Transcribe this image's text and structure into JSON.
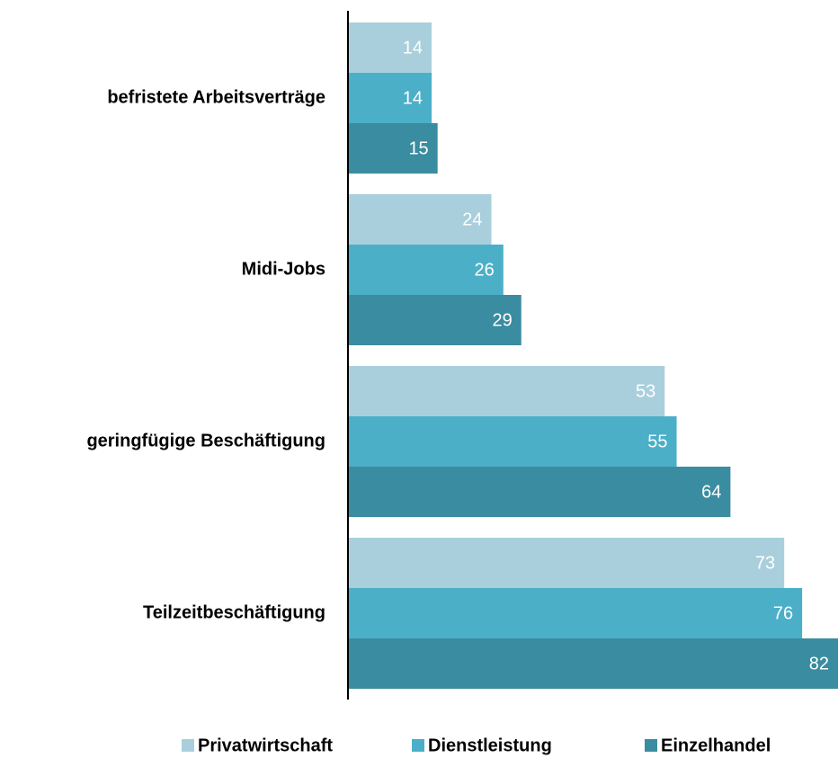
{
  "chart_data": {
    "type": "bar",
    "orientation": "horizontal",
    "categories": [
      "befristete Arbeitsverträge",
      "Midi-Jobs",
      "geringfügige Beschäftigung",
      "Teilzeitbeschäftigung"
    ],
    "series": [
      {
        "name": "Privatwirtschaft",
        "color": "#a9cfdc",
        "values": [
          14,
          24,
          53,
          73
        ]
      },
      {
        "name": "Dienstleistung",
        "color": "#4bafc8",
        "values": [
          14,
          26,
          55,
          76
        ]
      },
      {
        "name": "Einzelhandel",
        "color": "#3a8ca0",
        "values": [
          15,
          29,
          64,
          82
        ]
      }
    ],
    "xlim": [
      0,
      82
    ],
    "legend": "bottom"
  }
}
